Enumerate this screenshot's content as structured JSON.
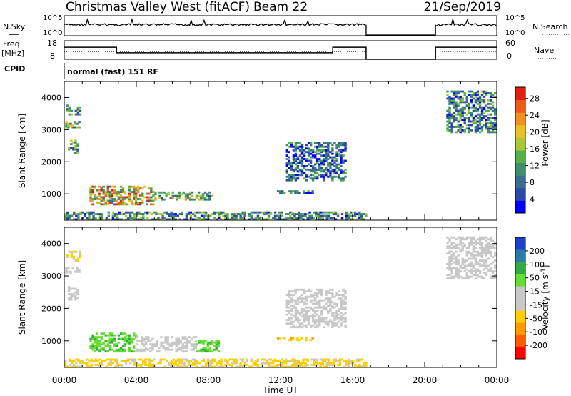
{
  "header": {
    "station": "Christmas Valley West (fitACF)",
    "beam": "Beam 22",
    "date": "21/Sep/2019"
  },
  "panel_labels": {
    "nsky": "N.Sky",
    "nsearch": "N.Search",
    "freq_line1": "Freq.",
    "freq_line2": "[MHz]",
    "nave": "Nave",
    "cpid": "CPID",
    "cpid_value": "normal (fast) 151 RF"
  },
  "colors": {
    "power_scale": [
      "#0000ff",
      "#2a4aa8",
      "#3c6e8c",
      "#3f8f6e",
      "#58b04a",
      "#a8c83a",
      "#e8c028",
      "#f09020",
      "#ee5a18",
      "#e02010"
    ],
    "velocity_scale": [
      "#ff0000",
      "#ff5a00",
      "#ff9a00",
      "#ffd000",
      "#c8c8c8",
      "#c8c8c8",
      "#66dd33",
      "#33aa44",
      "#2a7aaa",
      "#2040c8"
    ],
    "axis": "#000000"
  },
  "chart_data": [
    {
      "type": "line",
      "name": "noise-panel",
      "left_label": "N.Sky",
      "right_label": "N.Search",
      "left_ticks": [
        "10^5",
        "10^0"
      ],
      "right_ticks": [
        "10^5",
        "10^0"
      ],
      "x_range_hours": [
        0,
        24
      ],
      "data_gap_hours": [
        16.75,
        20.6
      ],
      "sky_level": 0.55
    },
    {
      "type": "line",
      "name": "frequency-panel",
      "left_label": "Freq. [MHz]",
      "right_label": "Nave",
      "left_ticks": [
        "18",
        "8"
      ],
      "right_ticks": [
        "60",
        "0"
      ],
      "freq_segments": [
        {
          "x0": 0.0,
          "x1": 2.9,
          "mhz": 14.5
        },
        {
          "x0": 2.9,
          "x1": 14.9,
          "mhz": 11.5
        },
        {
          "x0": 14.9,
          "x1": 16.75,
          "mhz": 14.5
        },
        {
          "x0": 20.6,
          "x1": 24.0,
          "mhz": 14.5
        }
      ],
      "nave_level": 25
    },
    {
      "type": "heatmap",
      "name": "power-panel",
      "ylabel": "Slant Range [km]",
      "yticks": [
        1000,
        2000,
        3000,
        4000
      ],
      "ylim": [
        180,
        4500
      ],
      "colorbar_label": "Power [dB]",
      "colorbar_ticks": [
        4,
        8,
        12,
        16,
        20,
        24,
        28
      ],
      "colorbar_range": [
        0,
        30
      ],
      "regions": [
        {
          "x0": 0.1,
          "x1": 0.9,
          "r0": 3450,
          "r1": 3750,
          "v": 10
        },
        {
          "x0": 0.05,
          "x1": 0.8,
          "r0": 3050,
          "r1": 3250,
          "v": 12
        },
        {
          "x0": 0.2,
          "x1": 0.7,
          "r0": 2250,
          "r1": 2650,
          "v": 13
        },
        {
          "x0": 1.4,
          "x1": 5.0,
          "r0": 650,
          "r1": 1250,
          "v": 18
        },
        {
          "x0": 5.0,
          "x1": 8.2,
          "r0": 800,
          "r1": 1050,
          "v": 14
        },
        {
          "x0": 11.8,
          "x1": 13.8,
          "r0": 1000,
          "r1": 1100,
          "v": 8
        },
        {
          "x0": 12.3,
          "x1": 15.6,
          "r0": 1400,
          "r1": 2600,
          "v": 7
        },
        {
          "x0": 21.2,
          "x1": 23.9,
          "r0": 2900,
          "r1": 4200,
          "v": 9
        },
        {
          "x0": 0.0,
          "x1": 16.75,
          "r0": 180,
          "r1": 450,
          "v": 10
        }
      ]
    },
    {
      "type": "heatmap",
      "name": "velocity-panel",
      "ylabel": "Slant Range [km]",
      "yticks": [
        1000,
        2000,
        3000,
        4000
      ],
      "ylim": [
        180,
        4500
      ],
      "colorbar_label": "Velocity [m s-1]",
      "colorbar_ticks": [
        -200,
        -100,
        -50,
        -15,
        15,
        50,
        100,
        200
      ],
      "regions": [
        {
          "x0": 0.1,
          "x1": 0.9,
          "r0": 3450,
          "r1": 3750,
          "v": -20
        },
        {
          "x0": 0.05,
          "x1": 0.8,
          "r0": 3050,
          "r1": 3250,
          "v": 5
        },
        {
          "x0": 0.2,
          "x1": 0.7,
          "r0": 2250,
          "r1": 2650,
          "v": 5
        },
        {
          "x0": 1.4,
          "x1": 4.0,
          "r0": 650,
          "r1": 1250,
          "v": 40
        },
        {
          "x0": 4.0,
          "x1": 7.3,
          "r0": 650,
          "r1": 1100,
          "v": 5
        },
        {
          "x0": 7.3,
          "x1": 8.5,
          "r0": 650,
          "r1": 1000,
          "v": 40
        },
        {
          "x0": 11.8,
          "x1": 13.8,
          "r0": 1000,
          "r1": 1100,
          "v": -40
        },
        {
          "x0": 12.3,
          "x1": 15.6,
          "r0": 1400,
          "r1": 2600,
          "v": 5
        },
        {
          "x0": 21.2,
          "x1": 23.9,
          "r0": 2900,
          "r1": 4200,
          "v": 5
        },
        {
          "x0": 0.0,
          "x1": 16.75,
          "r0": 180,
          "r1": 450,
          "v": -20
        }
      ]
    }
  ],
  "x_axis": {
    "label": "Time UT",
    "ticks": [
      "00:00",
      "04:00",
      "08:00",
      "12:00",
      "16:00",
      "20:00",
      "00:00"
    ],
    "tick_hours": [
      0,
      4,
      8,
      12,
      16,
      20,
      24
    ]
  }
}
